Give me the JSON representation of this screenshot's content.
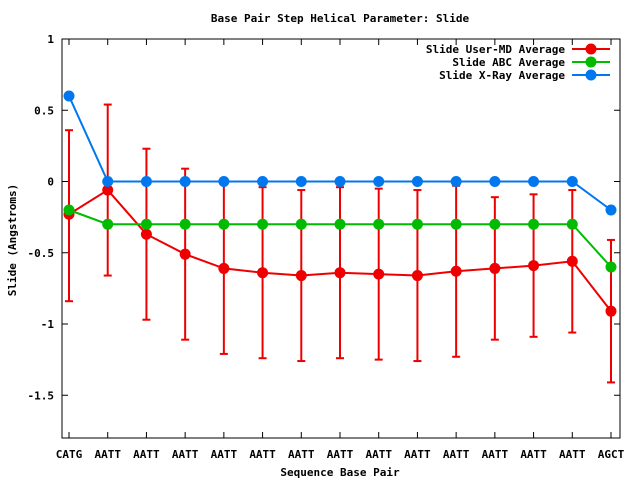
{
  "chart_data": {
    "type": "line",
    "title": "Base Pair Step Helical Parameter: Slide",
    "xlabel": "Sequence Base Pair",
    "ylabel": "Slide (Angstroms)",
    "ylim": [
      -1.8,
      1.0
    ],
    "yticks": [
      1,
      0.5,
      0,
      -0.5,
      -1,
      -1.5
    ],
    "ytick_labels": [
      "1",
      "0.5",
      "0",
      "-0.5",
      "-1",
      "-1.5"
    ],
    "categories": [
      "CATG",
      "AATT",
      "AATT",
      "AATT",
      "AATT",
      "AATT",
      "AATT",
      "AATT",
      "AATT",
      "AATT",
      "AATT",
      "AATT",
      "AATT",
      "AATT",
      "AGCT"
    ],
    "legend_position": "top-right",
    "series": [
      {
        "name": "Slide User-MD Average",
        "color": "#ee0000",
        "values": [
          -0.23,
          -0.06,
          -0.37,
          -0.51,
          -0.61,
          -0.64,
          -0.66,
          -0.64,
          -0.65,
          -0.66,
          -0.63,
          -0.61,
          -0.59,
          -0.56,
          -0.91
        ],
        "error_low": [
          -0.84,
          -0.66,
          -0.97,
          -1.11,
          -1.21,
          -1.24,
          -1.26,
          -1.24,
          -1.25,
          -1.26,
          -1.23,
          -1.11,
          -1.09,
          -1.06,
          -1.41
        ],
        "error_high": [
          0.36,
          0.54,
          0.23,
          0.09,
          -0.01,
          -0.04,
          -0.06,
          -0.04,
          -0.05,
          -0.06,
          -0.03,
          -0.11,
          -0.09,
          -0.06,
          -0.41
        ]
      },
      {
        "name": "Slide ABC Average",
        "color": "#00bb00",
        "values": [
          -0.2,
          -0.3,
          -0.3,
          -0.3,
          -0.3,
          -0.3,
          -0.3,
          -0.3,
          -0.3,
          -0.3,
          -0.3,
          -0.3,
          -0.3,
          -0.3,
          -0.6
        ]
      },
      {
        "name": "Slide X-Ray Average",
        "color": "#0077ee",
        "values": [
          0.6,
          0.0,
          0.0,
          0.0,
          0.0,
          0.0,
          0.0,
          0.0,
          0.0,
          0.0,
          0.0,
          0.0,
          0.0,
          0.0,
          -0.2
        ]
      }
    ]
  }
}
